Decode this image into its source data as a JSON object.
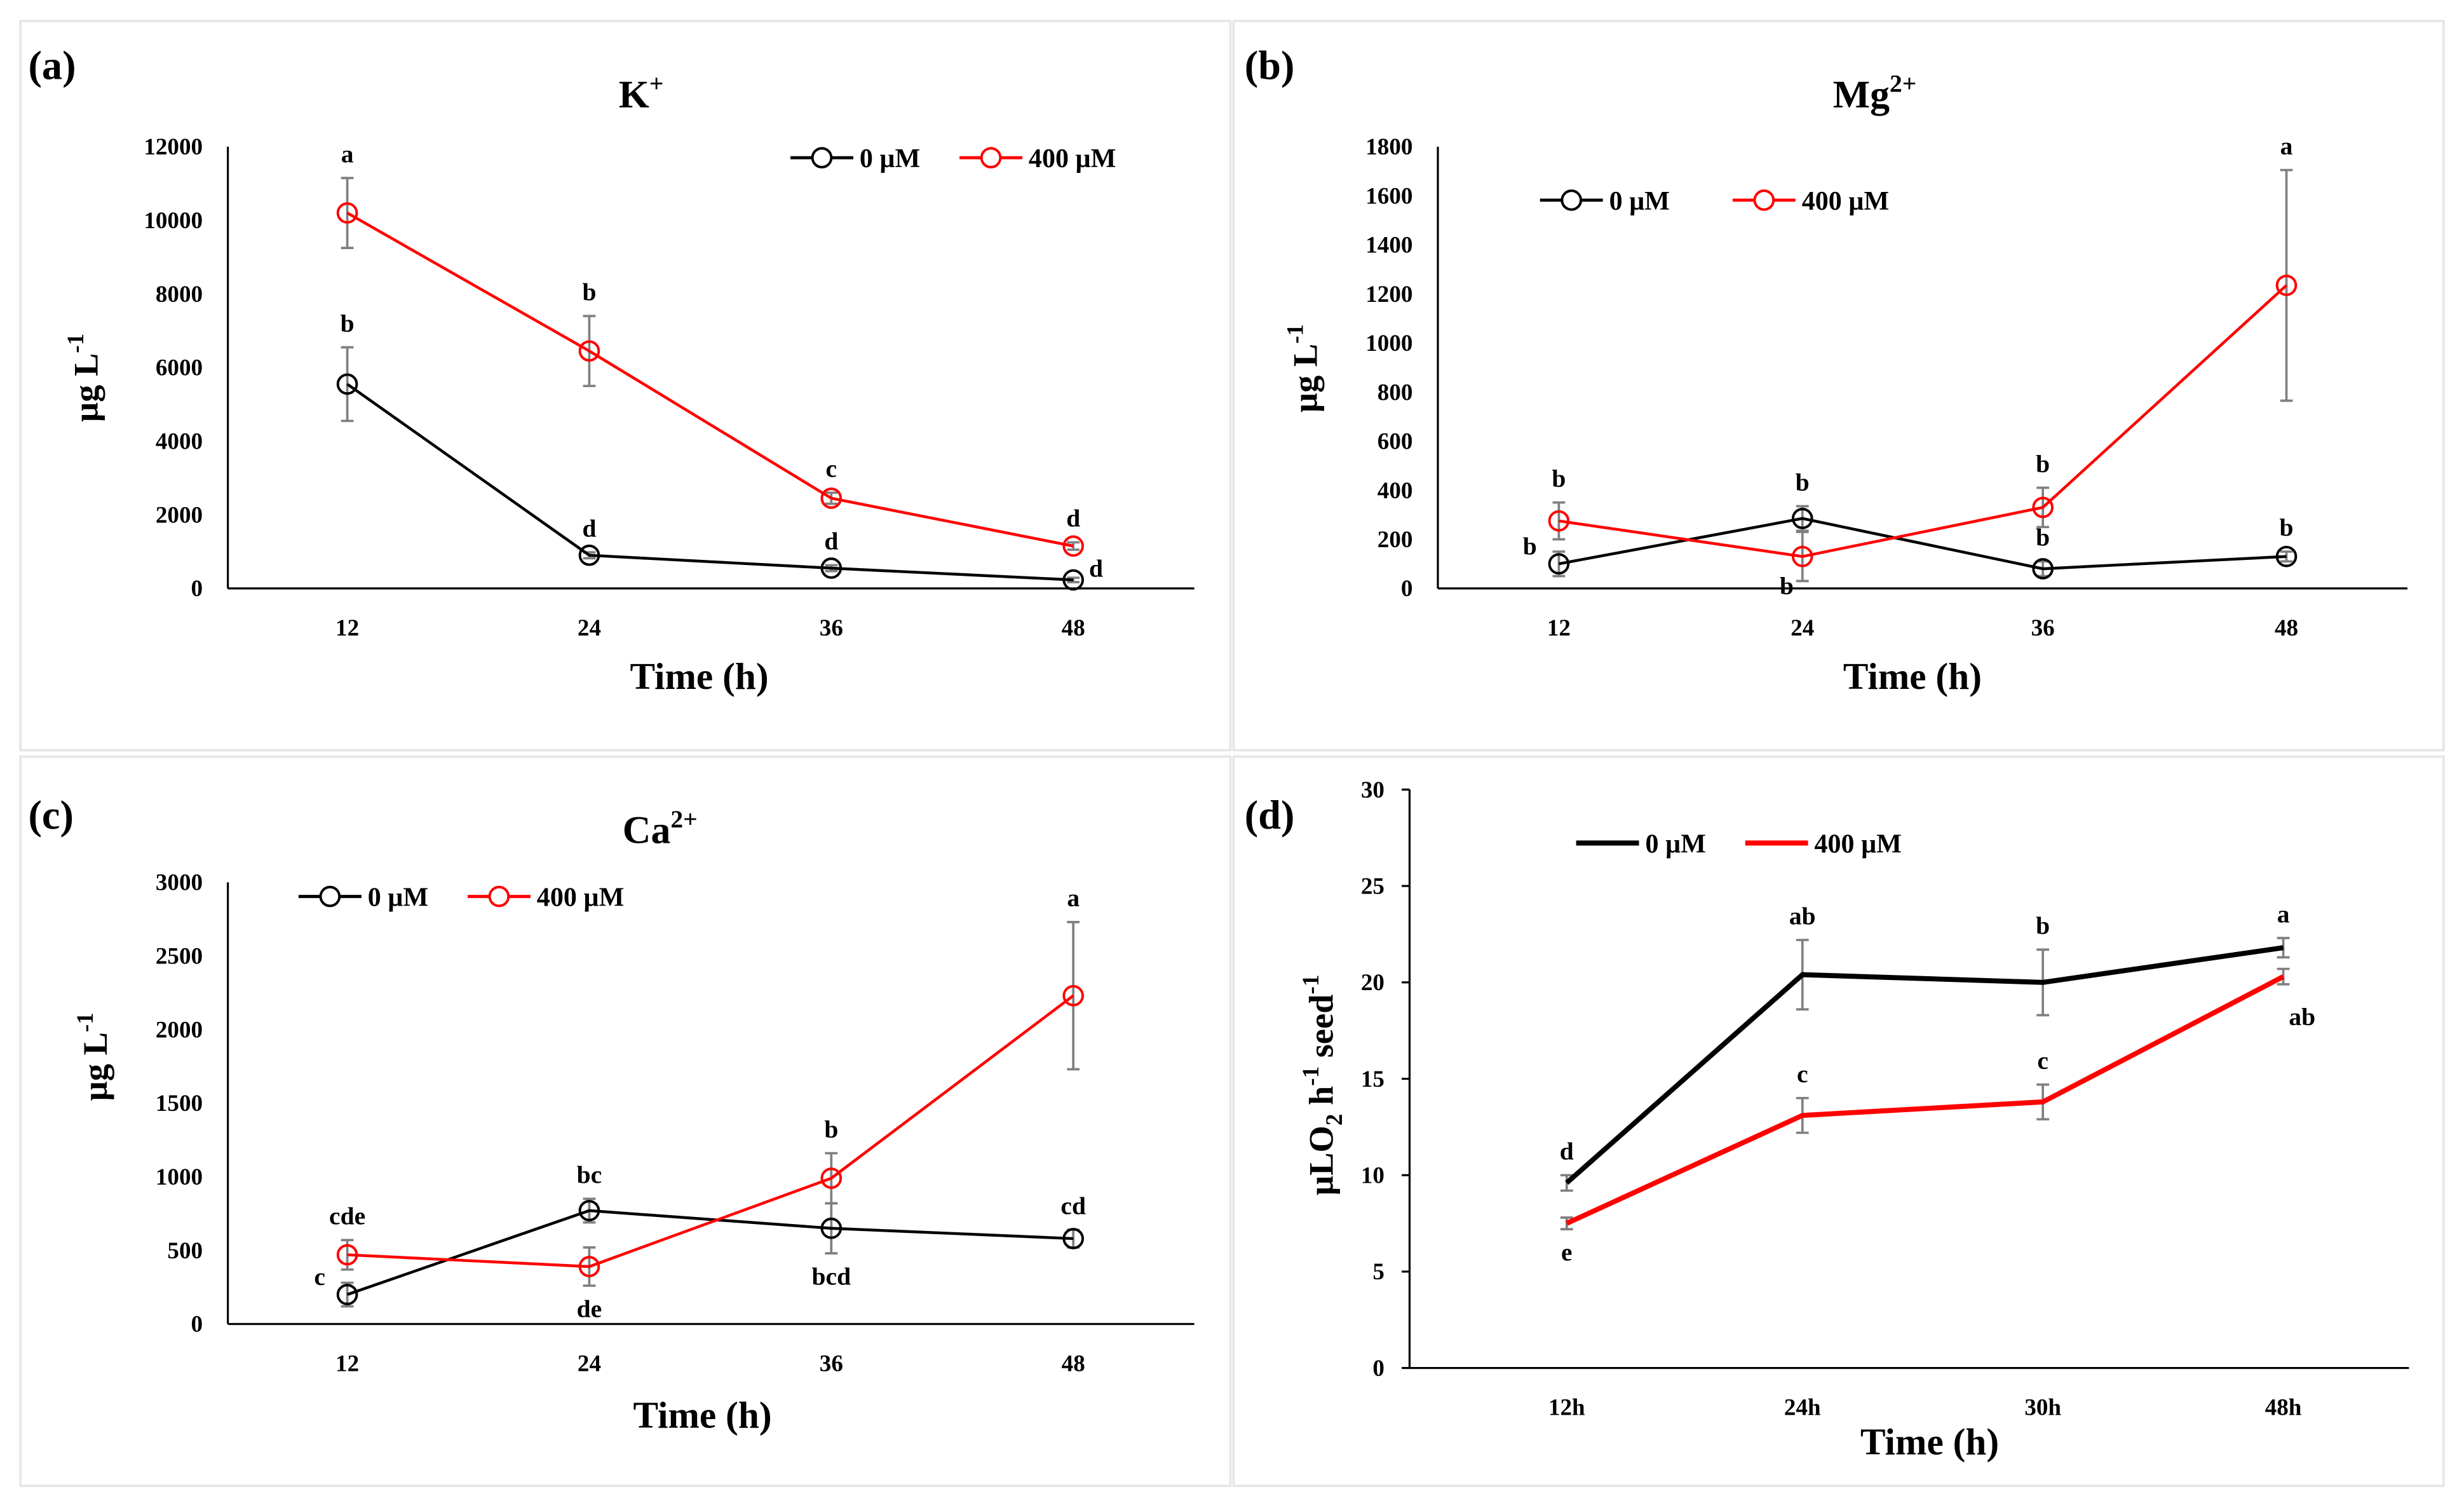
{
  "colors": {
    "control": "#000000",
    "treatment": "#ff0000",
    "error_bar": "#808080"
  },
  "chart_data": [
    {
      "type": "line",
      "panel": "(a)",
      "title_main": "K",
      "title_sup": "+",
      "ylabel_main": "µg L",
      "ylabel_sup": "-1",
      "xlabel": "Time (h)",
      "categories": [
        "12",
        "24",
        "36",
        "48"
      ],
      "yticks": [
        0,
        2000,
        4000,
        6000,
        8000,
        10000,
        12000
      ],
      "ylim": [
        0,
        12000
      ],
      "markers": true,
      "legend": "top-right",
      "series": [
        {
          "name": "0 µM",
          "color": "#000000",
          "values": [
            5550,
            900,
            550,
            230
          ],
          "errors": [
            1000,
            80,
            80,
            60
          ],
          "letters": [
            "b",
            "d",
            "d",
            "d"
          ],
          "letter_pos": [
            "above",
            "above",
            "above",
            "right"
          ]
        },
        {
          "name": "400 µM",
          "color": "#ff0000",
          "values": [
            10200,
            6450,
            2450,
            1150
          ],
          "errors": [
            950,
            950,
            150,
            100
          ],
          "letters": [
            "a",
            "b",
            "c",
            "d"
          ],
          "letter_pos": [
            "above",
            "above",
            "above",
            "above"
          ]
        }
      ]
    },
    {
      "type": "line",
      "panel": "(b)",
      "title_main": "Mg",
      "title_sup": "2+",
      "ylabel_main": "µg L",
      "ylabel_sup": "-1",
      "xlabel": "Time (h)",
      "categories": [
        "12",
        "24",
        "36",
        "48"
      ],
      "yticks": [
        0,
        200,
        400,
        600,
        800,
        1000,
        1200,
        1400,
        1600,
        1800
      ],
      "ylim": [
        0,
        1800
      ],
      "markers": true,
      "legend": "top-left",
      "series": [
        {
          "name": "0 µM",
          "color": "#000000",
          "values": [
            100,
            285,
            80,
            130
          ],
          "errors": [
            50,
            50,
            30,
            20
          ],
          "letters": [
            "b",
            "b",
            "b",
            "b"
          ],
          "letter_pos": [
            "left",
            "above",
            "above",
            "above"
          ]
        },
        {
          "name": "400 µM",
          "color": "#ff0000",
          "values": [
            275,
            130,
            330,
            1235
          ],
          "errors": [
            75,
            100,
            80,
            470
          ],
          "letters": [
            "b",
            "b",
            "b",
            "a"
          ],
          "letter_pos": [
            "above",
            "below-left",
            "above",
            "above"
          ]
        }
      ]
    },
    {
      "type": "line",
      "panel": "(c)",
      "title_main": "Ca",
      "title_sup": "2+",
      "ylabel_main": "µg L",
      "ylabel_sup": "-1",
      "xlabel": "Time (h)",
      "categories": [
        "12",
        "24",
        "36",
        "48"
      ],
      "yticks": [
        0,
        500,
        1000,
        1500,
        2000,
        2500,
        3000
      ],
      "ylim": [
        0,
        3000
      ],
      "markers": true,
      "legend": "top-left",
      "series": [
        {
          "name": "0 µM",
          "color": "#000000",
          "values": [
            200,
            770,
            650,
            580
          ],
          "errors": [
            80,
            80,
            170,
            60
          ],
          "letters": [
            "c",
            "bc",
            "bcd",
            "cd"
          ],
          "letter_pos": [
            "left",
            "above",
            "below",
            "above"
          ]
        },
        {
          "name": "400 µM",
          "color": "#ff0000",
          "values": [
            470,
            390,
            990,
            2230
          ],
          "errors": [
            100,
            130,
            170,
            500
          ],
          "letters": [
            "cde",
            "de",
            "b",
            "a"
          ],
          "letter_pos": [
            "above",
            "below",
            "above",
            "above"
          ]
        }
      ]
    },
    {
      "type": "line",
      "panel": "(d)",
      "title_main": "",
      "title_sup": "",
      "ylabel_main": "µLO",
      "ylabel_sub": "2",
      "ylabel_h": " h",
      "ylabel_sup": "-1",
      "ylabel_seed": " seed",
      "ylabel_sup2": "-1",
      "xlabel": "Time (h)",
      "categories": [
        "12h",
        "24h",
        "30h",
        "48h"
      ],
      "yticks": [
        0,
        5,
        10,
        15,
        20,
        25,
        30
      ],
      "ylim": [
        0,
        30
      ],
      "markers": false,
      "legend": "top-left",
      "series": [
        {
          "name": "0 µM",
          "color": "#000000",
          "values": [
            9.6,
            20.4,
            20.0,
            21.8
          ],
          "errors": [
            0.4,
            1.8,
            1.7,
            0.5
          ],
          "letters": [
            "d",
            "ab",
            "b",
            "a"
          ],
          "letter_pos": [
            "above",
            "above",
            "above",
            "above"
          ]
        },
        {
          "name": "400 µM",
          "color": "#ff0000",
          "values": [
            7.5,
            13.1,
            13.8,
            20.3
          ],
          "errors": [
            0.3,
            0.9,
            0.9,
            0.4
          ],
          "letters": [
            "e",
            "c",
            "c",
            "ab"
          ],
          "letter_pos": [
            "below",
            "above",
            "above",
            "below-right"
          ]
        }
      ]
    }
  ]
}
